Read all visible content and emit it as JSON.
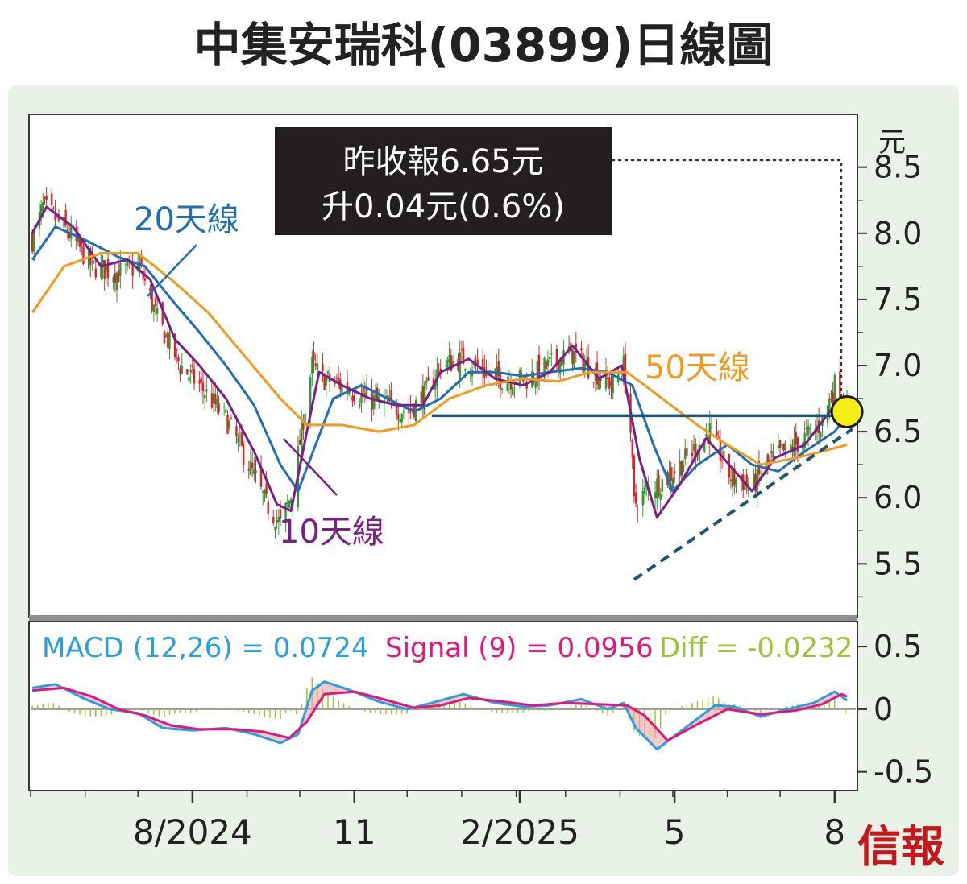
{
  "title": "中集安瑞科(03899)日線圖",
  "price_box": {
    "line1": "昨收報6.65元",
    "line2": "升0.04元(0.6%)"
  },
  "ma_labels": {
    "ma20": "20天線",
    "ma10": "10天線",
    "ma50": "50天線"
  },
  "macd_legend": {
    "macd": "MACD (12,26) = 0.0724",
    "signal": "Signal (9) = 0.0956",
    "diff": "Diff = -0.0232"
  },
  "logo": "信報",
  "colors": {
    "up_candle": "#2e9a34",
    "down_candle": "#d7262b",
    "ma10": "#7a1f86",
    "ma20": "#1f6fb7",
    "ma50": "#f09a1e",
    "support": "#1d5572",
    "macd": "#2a9fe0",
    "signal": "#e0187a",
    "diff": "#9bc33a",
    "marker": "#f5ee16",
    "chart_border": "#3a3a3a",
    "outer_bg": "#e9f2e6"
  },
  "chart_data": [
    {
      "type": "candlestick",
      "unit_label": "元",
      "ylim": [
        5.1,
        8.9
      ],
      "yticks": [
        "8.5",
        "8.0",
        "7.5",
        "7.0",
        "6.5",
        "6.0",
        "5.5"
      ],
      "xticks": [
        {
          "label": "8/2024",
          "date": "2024-08-01"
        },
        {
          "label": "11",
          "date": "2024-11-01"
        },
        {
          "label": "2/2025",
          "date": "2025-02-03"
        },
        {
          "label": "5",
          "date": "2025-05-02"
        },
        {
          "label": "8",
          "date": "2025-08-01"
        }
      ],
      "close_path": [
        [
          "2024-05-02",
          7.95
        ],
        [
          "2024-05-08",
          8.2
        ],
        [
          "2024-05-20",
          8.05
        ],
        [
          "2024-06-05",
          7.75
        ],
        [
          "2024-06-20",
          7.7
        ],
        [
          "2024-07-02",
          7.75
        ],
        [
          "2024-07-12",
          7.35
        ],
        [
          "2024-07-25",
          7.0
        ],
        [
          "2024-08-05",
          6.85
        ],
        [
          "2024-08-20",
          6.6
        ],
        [
          "2024-09-02",
          6.25
        ],
        [
          "2024-09-12",
          5.95
        ],
        [
          "2024-09-20",
          5.8
        ],
        [
          "2024-09-27",
          6.05
        ],
        [
          "2024-10-03",
          6.6
        ],
        [
          "2024-10-08",
          7.0
        ],
        [
          "2024-10-14",
          6.9
        ],
        [
          "2024-10-25",
          6.85
        ],
        [
          "2024-11-08",
          6.75
        ],
        [
          "2024-11-20",
          6.7
        ],
        [
          "2024-12-02",
          6.65
        ],
        [
          "2024-12-12",
          6.8
        ],
        [
          "2024-12-20",
          7.0
        ],
        [
          "2025-01-02",
          7.05
        ],
        [
          "2025-01-14",
          6.95
        ],
        [
          "2025-01-24",
          6.9
        ],
        [
          "2025-02-07",
          6.9
        ],
        [
          "2025-02-20",
          7.0
        ],
        [
          "2025-03-04",
          7.1
        ],
        [
          "2025-03-18",
          6.95
        ],
        [
          "2025-03-28",
          6.85
        ],
        [
          "2025-04-03",
          7.0
        ],
        [
          "2025-04-07",
          6.5
        ],
        [
          "2025-04-09",
          5.95
        ],
        [
          "2025-04-16",
          6.05
        ],
        [
          "2025-04-28",
          6.15
        ],
        [
          "2025-05-09",
          6.3
        ],
        [
          "2025-05-22",
          6.5
        ],
        [
          "2025-06-03",
          6.15
        ],
        [
          "2025-06-16",
          6.1
        ],
        [
          "2025-06-27",
          6.3
        ],
        [
          "2025-07-10",
          6.4
        ],
        [
          "2025-07-24",
          6.55
        ],
        [
          "2025-08-01",
          6.85
        ],
        [
          "2025-08-08",
          6.65
        ]
      ],
      "series": [
        {
          "name": "20天線",
          "type": "line",
          "values": [
            [
              "2024-05-02",
              7.8
            ],
            [
              "2024-05-15",
              8.05
            ],
            [
              "2024-06-01",
              7.95
            ],
            [
              "2024-06-20",
              7.82
            ],
            [
              "2024-07-05",
              7.75
            ],
            [
              "2024-07-20",
              7.5
            ],
            [
              "2024-08-05",
              7.25
            ],
            [
              "2024-08-20",
              7.0
            ],
            [
              "2024-09-05",
              6.7
            ],
            [
              "2024-09-20",
              6.25
            ],
            [
              "2024-09-30",
              6.05
            ],
            [
              "2024-10-10",
              6.4
            ],
            [
              "2024-10-20",
              6.75
            ],
            [
              "2024-11-05",
              6.85
            ],
            [
              "2024-11-20",
              6.75
            ],
            [
              "2024-12-05",
              6.65
            ],
            [
              "2024-12-20",
              6.75
            ],
            [
              "2025-01-05",
              6.95
            ],
            [
              "2025-01-20",
              6.95
            ],
            [
              "2025-02-05",
              6.92
            ],
            [
              "2025-02-20",
              6.95
            ],
            [
              "2025-03-10",
              6.98
            ],
            [
              "2025-03-25",
              6.95
            ],
            [
              "2025-04-08",
              6.85
            ],
            [
              "2025-04-20",
              6.4
            ],
            [
              "2025-05-01",
              6.05
            ],
            [
              "2025-05-15",
              6.25
            ],
            [
              "2025-06-01",
              6.4
            ],
            [
              "2025-06-15",
              6.25
            ],
            [
              "2025-06-30",
              6.2
            ],
            [
              "2025-07-15",
              6.35
            ],
            [
              "2025-08-01",
              6.5
            ],
            [
              "2025-08-08",
              6.62
            ]
          ]
        },
        {
          "name": "10天線",
          "type": "line",
          "values": [
            [
              "2024-05-02",
              8.0
            ],
            [
              "2024-05-10",
              8.2
            ],
            [
              "2024-05-25",
              8.05
            ],
            [
              "2024-06-10",
              7.75
            ],
            [
              "2024-06-25",
              7.8
            ],
            [
              "2024-07-08",
              7.65
            ],
            [
              "2024-07-22",
              7.2
            ],
            [
              "2024-08-05",
              7.0
            ],
            [
              "2024-08-20",
              6.75
            ],
            [
              "2024-09-05",
              6.35
            ],
            [
              "2024-09-18",
              5.95
            ],
            [
              "2024-09-26",
              5.9
            ],
            [
              "2024-10-05",
              6.5
            ],
            [
              "2024-10-12",
              6.95
            ],
            [
              "2024-10-25",
              6.85
            ],
            [
              "2024-11-10",
              6.75
            ],
            [
              "2024-11-25",
              6.7
            ],
            [
              "2024-12-10",
              6.7
            ],
            [
              "2024-12-20",
              6.95
            ],
            [
              "2025-01-05",
              7.05
            ],
            [
              "2025-01-20",
              6.9
            ],
            [
              "2025-02-05",
              6.85
            ],
            [
              "2025-02-20",
              6.95
            ],
            [
              "2025-03-05",
              7.15
            ],
            [
              "2025-03-20",
              6.9
            ],
            [
              "2025-04-02",
              7.0
            ],
            [
              "2025-04-12",
              6.3
            ],
            [
              "2025-04-22",
              5.85
            ],
            [
              "2025-05-05",
              6.1
            ],
            [
              "2025-05-20",
              6.45
            ],
            [
              "2025-06-02",
              6.25
            ],
            [
              "2025-06-15",
              6.05
            ],
            [
              "2025-06-28",
              6.3
            ],
            [
              "2025-07-15",
              6.4
            ],
            [
              "2025-08-01",
              6.7
            ],
            [
              "2025-08-08",
              6.68
            ]
          ]
        },
        {
          "name": "50天線",
          "type": "line",
          "values": [
            [
              "2024-05-02",
              7.4
            ],
            [
              "2024-05-20",
              7.75
            ],
            [
              "2024-06-10",
              7.85
            ],
            [
              "2024-07-01",
              7.85
            ],
            [
              "2024-07-20",
              7.65
            ],
            [
              "2024-08-10",
              7.4
            ],
            [
              "2024-09-01",
              7.05
            ],
            [
              "2024-09-20",
              6.75
            ],
            [
              "2024-10-05",
              6.55
            ],
            [
              "2024-10-25",
              6.55
            ],
            [
              "2024-11-15",
              6.5
            ],
            [
              "2024-12-05",
              6.55
            ],
            [
              "2024-12-25",
              6.75
            ],
            [
              "2025-01-15",
              6.85
            ],
            [
              "2025-02-05",
              6.9
            ],
            [
              "2025-02-25",
              6.88
            ],
            [
              "2025-03-15",
              6.95
            ],
            [
              "2025-04-05",
              6.95
            ],
            [
              "2025-04-25",
              6.75
            ],
            [
              "2025-05-15",
              6.55
            ],
            [
              "2025-06-01",
              6.4
            ],
            [
              "2025-06-20",
              6.25
            ],
            [
              "2025-07-10",
              6.3
            ],
            [
              "2025-07-25",
              6.35
            ],
            [
              "2025-08-08",
              6.4
            ]
          ]
        }
      ],
      "support_line": {
        "value": 6.62,
        "from": "2024-12-15",
        "to": "2025-08-11"
      },
      "trend_line": {
        "from": [
          "2025-04-09",
          5.38
        ],
        "to": [
          "2025-08-11",
          6.52
        ]
      },
      "marker": {
        "date": "2025-08-08",
        "value": 6.65
      }
    },
    {
      "type": "line",
      "name": "MACD",
      "ylim": [
        -0.65,
        0.7
      ],
      "yticks": [
        "0.5",
        "0",
        "-0.5"
      ],
      "series": [
        {
          "name": "MACD",
          "values": [
            [
              "2024-05-02",
              0.17
            ],
            [
              "2024-05-15",
              0.2
            ],
            [
              "2024-06-01",
              0.08
            ],
            [
              "2024-06-15",
              0.0
            ],
            [
              "2024-07-01",
              -0.03
            ],
            [
              "2024-07-15",
              -0.15
            ],
            [
              "2024-08-01",
              -0.17
            ],
            [
              "2024-08-20",
              -0.15
            ],
            [
              "2024-09-05",
              -0.2
            ],
            [
              "2024-09-20",
              -0.27
            ],
            [
              "2024-09-30",
              -0.2
            ],
            [
              "2024-10-08",
              0.15
            ],
            [
              "2024-10-15",
              0.22
            ],
            [
              "2024-10-30",
              0.15
            ],
            [
              "2024-11-15",
              0.06
            ],
            [
              "2024-12-01",
              0.0
            ],
            [
              "2024-12-15",
              0.05
            ],
            [
              "2025-01-02",
              0.12
            ],
            [
              "2025-01-20",
              0.05
            ],
            [
              "2025-02-05",
              0.02
            ],
            [
              "2025-02-20",
              0.03
            ],
            [
              "2025-03-10",
              0.08
            ],
            [
              "2025-03-25",
              0.0
            ],
            [
              "2025-04-03",
              0.05
            ],
            [
              "2025-04-10",
              -0.15
            ],
            [
              "2025-04-22",
              -0.32
            ],
            [
              "2025-05-08",
              -0.15
            ],
            [
              "2025-05-25",
              0.03
            ],
            [
              "2025-06-05",
              0.02
            ],
            [
              "2025-06-20",
              -0.06
            ],
            [
              "2025-07-05",
              0.0
            ],
            [
              "2025-07-20",
              0.05
            ],
            [
              "2025-08-01",
              0.14
            ],
            [
              "2025-08-08",
              0.07
            ]
          ]
        },
        {
          "name": "Signal",
          "values": [
            [
              "2024-05-02",
              0.15
            ],
            [
              "2024-05-20",
              0.17
            ],
            [
              "2024-06-05",
              0.1
            ],
            [
              "2024-06-20",
              0.0
            ],
            [
              "2024-07-05",
              -0.05
            ],
            [
              "2024-07-20",
              -0.13
            ],
            [
              "2024-08-05",
              -0.16
            ],
            [
              "2024-08-25",
              -0.16
            ],
            [
              "2024-09-10",
              -0.18
            ],
            [
              "2024-09-25",
              -0.23
            ],
            [
              "2024-10-05",
              -0.1
            ],
            [
              "2024-10-15",
              0.12
            ],
            [
              "2024-11-01",
              0.14
            ],
            [
              "2024-11-20",
              0.07
            ],
            [
              "2024-12-05",
              0.01
            ],
            [
              "2024-12-20",
              0.03
            ],
            [
              "2025-01-05",
              0.09
            ],
            [
              "2025-01-25",
              0.06
            ],
            [
              "2025-02-10",
              0.03
            ],
            [
              "2025-03-01",
              0.05
            ],
            [
              "2025-03-20",
              0.04
            ],
            [
              "2025-04-05",
              0.03
            ],
            [
              "2025-04-15",
              -0.05
            ],
            [
              "2025-04-28",
              -0.25
            ],
            [
              "2025-05-15",
              -0.12
            ],
            [
              "2025-06-01",
              0.0
            ],
            [
              "2025-06-20",
              -0.04
            ],
            [
              "2025-07-10",
              -0.01
            ],
            [
              "2025-07-25",
              0.04
            ],
            [
              "2025-08-05",
              0.12
            ],
            [
              "2025-08-08",
              0.1
            ]
          ]
        }
      ]
    }
  ]
}
